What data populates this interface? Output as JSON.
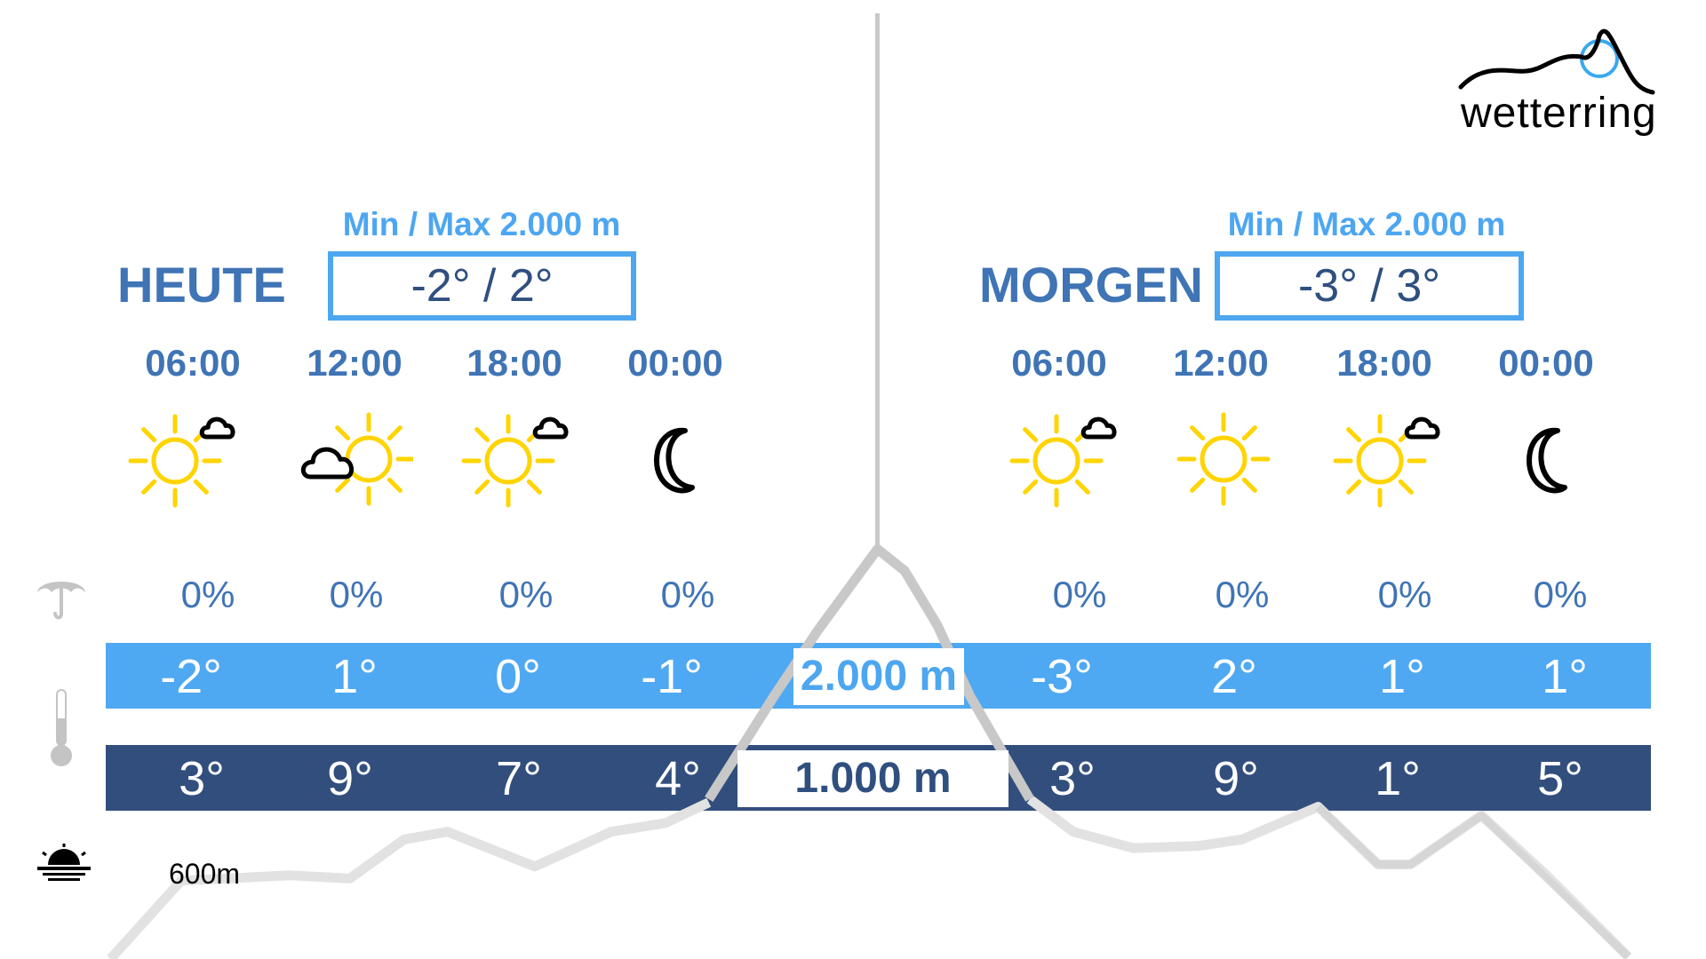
{
  "logo": {
    "text": "wetterring",
    "colors": {
      "mountain": "#000000",
      "sun": "#3aa9ee"
    }
  },
  "colors": {
    "title": "#3f74b5",
    "accent": "#4da6f0",
    "bar_high": "#4fa8f2",
    "bar_low": "#324e7d",
    "sun": "#ffd400"
  },
  "today": {
    "title": "HEUTE",
    "minmax_label": "Min / Max 2.000 m",
    "minmax_value": "-2° / 2°",
    "slots": [
      {
        "time": "06:00",
        "icon": "sun-small-cloud",
        "precip": "0%",
        "temp_2000": "-2°",
        "temp_1000": "3°"
      },
      {
        "time": "12:00",
        "icon": "cloud-sun",
        "precip": "0%",
        "temp_2000": "1°",
        "temp_1000": "9°"
      },
      {
        "time": "18:00",
        "icon": "sun-small-cloud",
        "precip": "0%",
        "temp_2000": "0°",
        "temp_1000": "7°"
      },
      {
        "time": "00:00",
        "icon": "moon",
        "precip": "0%",
        "temp_2000": "-1°",
        "temp_1000": "4°"
      }
    ]
  },
  "tomorrow": {
    "title": "MORGEN",
    "minmax_label": "Min / Max 2.000 m",
    "minmax_value": "-3° / 3°",
    "slots": [
      {
        "time": "06:00",
        "icon": "sun-small-cloud",
        "precip": "0%",
        "temp_2000": "-3°",
        "temp_1000": "3°"
      },
      {
        "time": "12:00",
        "icon": "sun",
        "precip": "0%",
        "temp_2000": "2°",
        "temp_1000": "9°"
      },
      {
        "time": "18:00",
        "icon": "sun-small-cloud",
        "precip": "0%",
        "temp_2000": "1°",
        "temp_1000": "1°"
      },
      {
        "time": "00:00",
        "icon": "moon",
        "precip": "0%",
        "temp_2000": "1°",
        "temp_1000": "5°"
      }
    ]
  },
  "altitudes": {
    "high": "2.000 m",
    "low": "1.000 m",
    "sun_level": "600m"
  },
  "row_icons": {
    "precip": "umbrella-icon",
    "temperature": "thermometer-icon",
    "sunshine": "sunrise-icon"
  }
}
